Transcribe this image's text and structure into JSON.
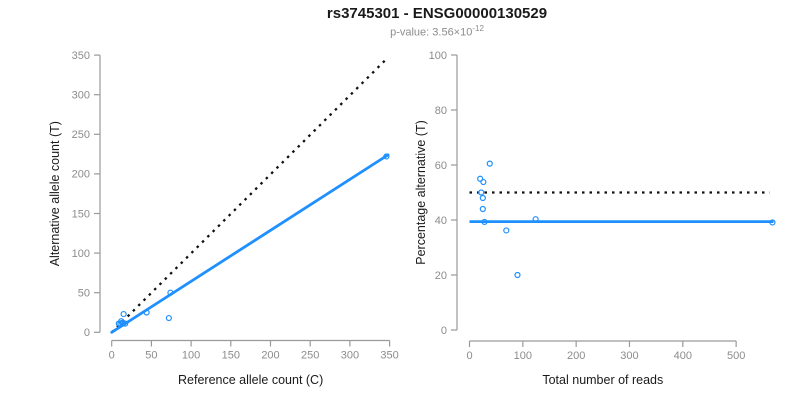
{
  "header": {
    "title": "rs3745301 - ENSG00000130529",
    "subtitle_prefix": "p-value: 3.56×10",
    "subtitle_exponent": "-12"
  },
  "colors": {
    "accent_blue": "#1E90FF",
    "dotted_black": "#111111",
    "axis_gray": "#9a9a9a",
    "tick_label_gray": "#8c8c8c",
    "title_black": "#1a1a1a"
  },
  "chart_data": [
    {
      "id": "allele-counts",
      "type": "scatter",
      "xlabel": "Reference allele count (C)",
      "ylabel": "Alternative allele count (T)",
      "xlim": [
        0,
        350
      ],
      "ylim": [
        0,
        350
      ],
      "xticks": [
        0,
        50,
        100,
        150,
        200,
        250,
        300,
        350
      ],
      "yticks": [
        0,
        50,
        100,
        150,
        200,
        250,
        300,
        350
      ],
      "grid": false,
      "points": [
        [
          9,
          11
        ],
        [
          11,
          11
        ],
        [
          12,
          14
        ],
        [
          13,
          12
        ],
        [
          14,
          11
        ],
        [
          17,
          11
        ],
        [
          15,
          23
        ],
        [
          44,
          25
        ],
        [
          72,
          18
        ],
        [
          74,
          50
        ],
        [
          346,
          222
        ]
      ],
      "fit_line": {
        "x1": 0,
        "y1": 0,
        "x2": 348,
        "y2": 224
      },
      "identity_line": {
        "x1": 0,
        "y1": 0,
        "x2": 346,
        "y2": 345
      }
    },
    {
      "id": "percentage-vs-total",
      "type": "scatter",
      "xlabel": "Total number of reads",
      "ylabel": "Percentage alternative (T)",
      "xlim": [
        0,
        500
      ],
      "ylim": [
        0,
        100
      ],
      "xticks": [
        0,
        100,
        200,
        300,
        400,
        500
      ],
      "yticks": [
        0,
        20,
        40,
        60,
        80,
        100
      ],
      "grid": false,
      "points": [
        [
          20,
          55
        ],
        [
          22,
          50
        ],
        [
          26,
          53.8
        ],
        [
          25,
          48
        ],
        [
          25,
          44
        ],
        [
          28,
          39.3
        ],
        [
          38,
          60.5
        ],
        [
          69,
          36.2
        ],
        [
          90,
          20
        ],
        [
          124,
          40.3
        ],
        [
          568,
          39.1
        ]
      ],
      "solid_hline": {
        "y": 39.4,
        "x1": 0,
        "x2": 570
      },
      "dotted_hline": {
        "y": 50,
        "x1": 0,
        "x2": 563
      }
    }
  ]
}
